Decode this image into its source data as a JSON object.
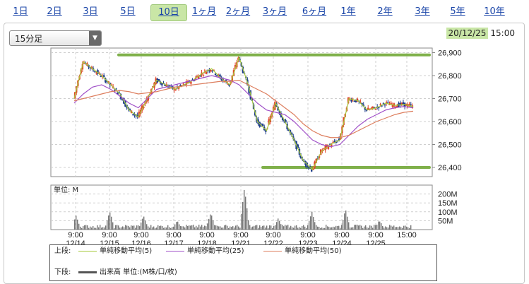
{
  "tabs": [
    "1日",
    "2日",
    "3日",
    "5日",
    "10日",
    "1ヶ月",
    "2ヶ月",
    "3ヶ月",
    "6ヶ月",
    "1年",
    "2年",
    "3年",
    "5年",
    "10年"
  ],
  "active_tab": "10日",
  "interval_select": {
    "value": "15分足"
  },
  "timestamp": {
    "date": "20/12/25",
    "time": "15:00"
  },
  "volume_unit_label": "単位: M",
  "colors": {
    "candle_up": "#e0462a",
    "candle_down": "#1b3a8c",
    "ma5": "#a5c93a",
    "ma25": "#a050c8",
    "ma50": "#dd7e5e",
    "volume": "#777777",
    "support_lines": "#7fb04a"
  },
  "legend": {
    "upper_label": "上段:",
    "lower_label": "下段:",
    "ma5": "単純移動平均(5)",
    "ma25": "単純移動平均(25)",
    "ma50": "単純移動平均(50)",
    "volume": "出来高 単位:(M株/口/枚)"
  },
  "chart_data": {
    "type": "candlestick",
    "x_ticks": [
      {
        "time": "9:00",
        "date": "12/14"
      },
      {
        "time": "9:00",
        "date": "12/15"
      },
      {
        "time": "9:00",
        "date": "12/16"
      },
      {
        "time": "9:00",
        "date": "12/17"
      },
      {
        "time": "9:00",
        "date": "12/18"
      },
      {
        "time": "9:00",
        "date": "12/21"
      },
      {
        "time": "9:00",
        "date": "12/22"
      },
      {
        "time": "9:00",
        "date": "12/23"
      },
      {
        "time": "9:00",
        "date": "12/24"
      },
      {
        "time": "9:00",
        "date": "12/25"
      },
      {
        "time": "15:00",
        "date": ""
      }
    ],
    "price_ticks": [
      "26,900",
      "26,800",
      "26,700",
      "26,600",
      "26,500",
      "26,400"
    ],
    "price_tick_values": [
      26900,
      26800,
      26700,
      26600,
      26500,
      26400
    ],
    "ylim": [
      26360,
      26920
    ],
    "volume_ticks": [
      "200M",
      "150M",
      "100M",
      "50M"
    ],
    "volume_tick_values": [
      200,
      150,
      100,
      50
    ],
    "volume_ylim": [
      0,
      250
    ],
    "support_lines": [
      26890,
      26400
    ],
    "close_path": [
      26700,
      26860,
      26830,
      26800,
      26760,
      26720,
      26650,
      26620,
      26700,
      26780,
      26760,
      26740,
      26760,
      26780,
      26810,
      26830,
      26790,
      26760,
      26880,
      26760,
      26600,
      26560,
      26680,
      26600,
      26520,
      26430,
      26390,
      26470,
      26500,
      26520,
      26700,
      26690,
      26650,
      26660,
      26680,
      26670,
      26675,
      26665
    ],
    "ma25_path": [
      26680,
      26720,
      26750,
      26760,
      26740,
      26710,
      26680,
      26660,
      26700,
      26740,
      26750,
      26760,
      26770,
      26780,
      26790,
      26800,
      26790,
      26780,
      26760,
      26720,
      26680,
      26650,
      26640,
      26630,
      26600,
      26560,
      26520,
      26500,
      26490,
      26500,
      26540,
      26580,
      26610,
      26630,
      26650,
      26660,
      26665,
      26660
    ],
    "ma50_path": [
      26690,
      26700,
      26710,
      26720,
      26730,
      26735,
      26730,
      26720,
      26725,
      26730,
      26740,
      26750,
      26755,
      26760,
      26765,
      26770,
      26775,
      26775,
      26780,
      26760,
      26740,
      26720,
      26690,
      26660,
      26630,
      26590,
      26560,
      26540,
      26530,
      26530,
      26540,
      26560,
      26580,
      26600,
      26615,
      26630,
      26640,
      26645
    ],
    "volume_spikes": [
      {
        "at": 0.0,
        "value": 75
      },
      {
        "at": 1.0,
        "value": 100
      },
      {
        "at": 2.0,
        "value": 75
      },
      {
        "at": 3.0,
        "value": 50
      },
      {
        "at": 4.0,
        "value": 95
      },
      {
        "at": 5.0,
        "value": 235
      },
      {
        "at": 6.0,
        "value": 60
      },
      {
        "at": 7.0,
        "value": 100
      },
      {
        "at": 8.0,
        "value": 110
      },
      {
        "at": 9.0,
        "value": 50
      }
    ]
  }
}
